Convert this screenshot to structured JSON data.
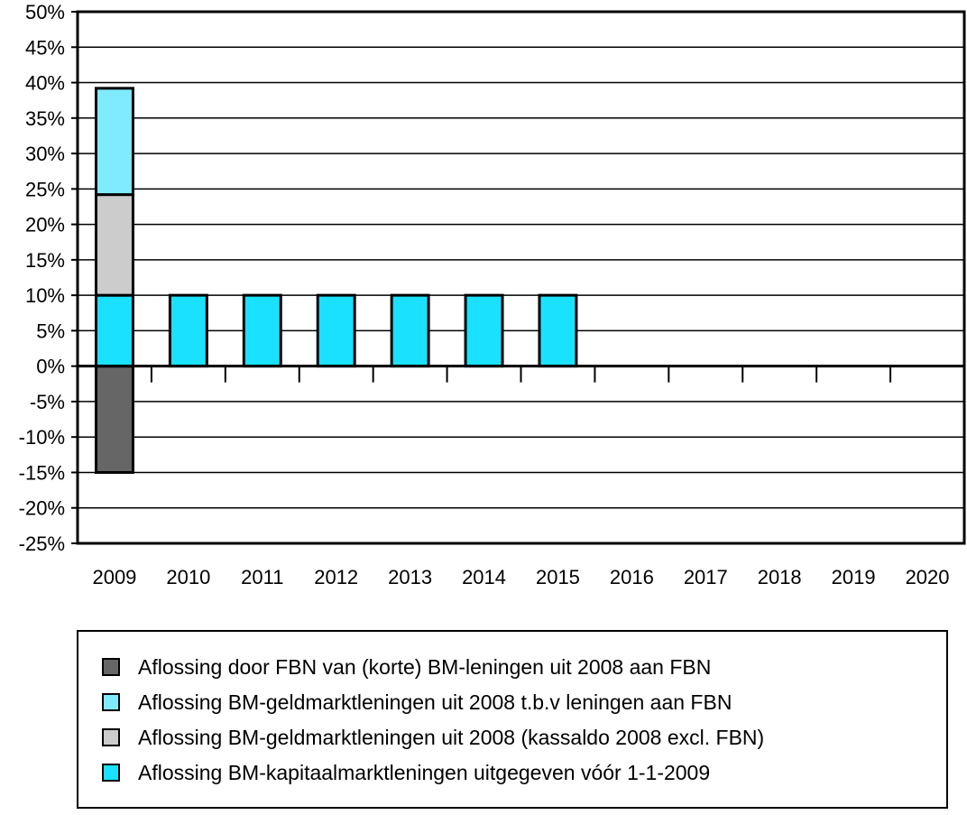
{
  "chart_data": {
    "type": "bar",
    "stacked": true,
    "categories": [
      "2009",
      "2010",
      "2011",
      "2012",
      "2013",
      "2014",
      "2015",
      "2016",
      "2017",
      "2018",
      "2019",
      "2020"
    ],
    "series": [
      {
        "name": "Aflossing door FBN van (korte) BM-leningen uit 2008 aan FBN",
        "color": "#666666",
        "values": [
          -15,
          0,
          0,
          0,
          0,
          0,
          0,
          0,
          0,
          0,
          0,
          0
        ]
      },
      {
        "name": "Aflossing BM-kapitaalmarktleningen uitgegeven vóór 1-1-2009",
        "color": "#1ae1ff",
        "values": [
          10,
          10,
          10,
          10,
          10,
          10,
          10,
          0,
          0,
          0,
          0,
          0
        ]
      },
      {
        "name": "Aflossing BM-geldmarktleningen uit 2008 (kassaldo 2008 excl. FBN)",
        "color": "#cccccc",
        "values": [
          14.2,
          0,
          0,
          0,
          0,
          0,
          0,
          0,
          0,
          0,
          0,
          0
        ]
      },
      {
        "name": "Aflossing BM-geldmarktleningen uit 2008 t.b.v leningen aan FBN",
        "color": "#80eaff",
        "values": [
          15,
          0,
          0,
          0,
          0,
          0,
          0,
          0,
          0,
          0,
          0,
          0
        ]
      }
    ],
    "y_ticks": [
      "50%",
      "45%",
      "40%",
      "35%",
      "30%",
      "25%",
      "20%",
      "15%",
      "10%",
      "5%",
      "0%",
      "-5%",
      "-10%",
      "-15%",
      "-20%",
      "-25%"
    ],
    "ylim": [
      -25,
      50
    ],
    "grid": true,
    "legend_position": "bottom"
  },
  "legend": {
    "items": [
      {
        "label": "Aflossing door FBN van (korte) BM-leningen uit 2008 aan FBN",
        "color": "#666666"
      },
      {
        "label": "Aflossing BM-geldmarktleningen uit 2008 t.b.v leningen aan FBN",
        "color": "#80eaff"
      },
      {
        "label": "Aflossing BM-geldmarktleningen uit 2008 (kassaldo 2008 excl. FBN)",
        "color": "#cccccc"
      },
      {
        "label": "Aflossing BM-kapitaalmarktleningen uitgegeven vóór 1-1-2009",
        "color": "#1ae1ff"
      }
    ]
  }
}
